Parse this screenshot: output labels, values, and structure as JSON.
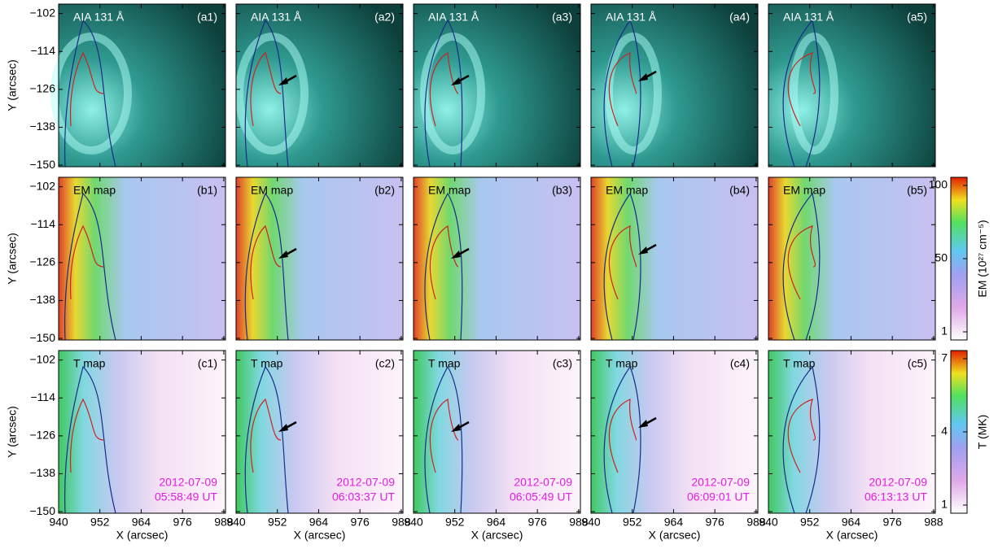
{
  "x_axis": {
    "label": "X (arcsec)",
    "xlim": [
      940,
      988.5
    ],
    "xticks": [
      940,
      952,
      964,
      976,
      988
    ]
  },
  "y_axis": {
    "label": "Y (arcsec)",
    "ylim": [
      -150.5,
      -99
    ],
    "yticks": [
      {
        "value": -102,
        "label": "−102"
      },
      {
        "value": -114,
        "label": "−114"
      },
      {
        "value": -126,
        "label": "−126"
      },
      {
        "value": -138,
        "label": "−138"
      },
      {
        "value": -150,
        "label": "−150"
      }
    ]
  },
  "rows": [
    {
      "title": "AIA 131 Å",
      "panels": [
        "(a1)",
        "(a2)",
        "(a3)",
        "(a4)",
        "(a5)"
      ]
    },
    {
      "title": "EM map",
      "panels": [
        "(b1)",
        "(b2)",
        "(b3)",
        "(b4)",
        "(b5)"
      ],
      "colorbar": {
        "label": "EM (10²⁷ cm⁻⁵)",
        "ticks": [
          100,
          50,
          1
        ]
      }
    },
    {
      "title": "T map",
      "panels": [
        "(c1)",
        "(c2)",
        "(c3)",
        "(c4)",
        "(c5)"
      ],
      "colorbar": {
        "label": "T (MK)",
        "ticks": [
          7,
          4,
          1
        ]
      }
    }
  ],
  "timestamps": [
    {
      "date": "2012-07-09",
      "time": "05:58:49 UT"
    },
    {
      "date": "2012-07-09",
      "time": "06:03:37 UT"
    },
    {
      "date": "2012-07-09",
      "time": "06:05:49 UT"
    },
    {
      "date": "2012-07-09",
      "time": "06:09:01 UT"
    },
    {
      "date": "2012-07-09",
      "time": "06:13:13 UT"
    }
  ]
}
